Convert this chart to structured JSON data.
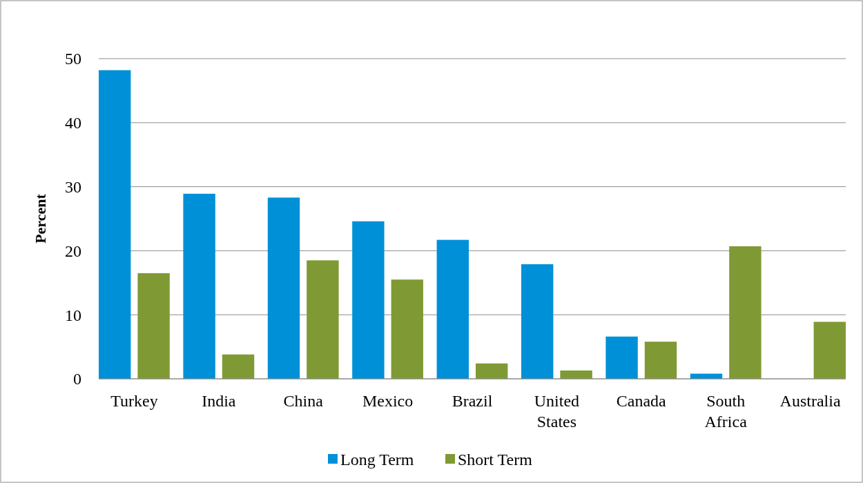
{
  "chart_data": {
    "type": "bar",
    "ylabel": "Percent",
    "categories": [
      "Turkey",
      "India",
      "China",
      "Mexico",
      "Brazil",
      "United States",
      "Canada",
      "South Africa",
      "Australia"
    ],
    "series": [
      {
        "name": "Long Term",
        "color": "#0090d8",
        "values": [
          48.2,
          28.9,
          28.3,
          24.6,
          21.7,
          17.9,
          6.6,
          0.8,
          0
        ]
      },
      {
        "name": "Short Term",
        "color": "#7f9a34",
        "values": [
          16.5,
          3.8,
          18.5,
          15.5,
          2.4,
          1.3,
          5.8,
          20.7,
          8.9
        ]
      }
    ],
    "ylim": [
      0,
      50
    ],
    "yticks": [
      0,
      10,
      20,
      30,
      40,
      50
    ],
    "grid": "y",
    "legend": "bottom"
  }
}
